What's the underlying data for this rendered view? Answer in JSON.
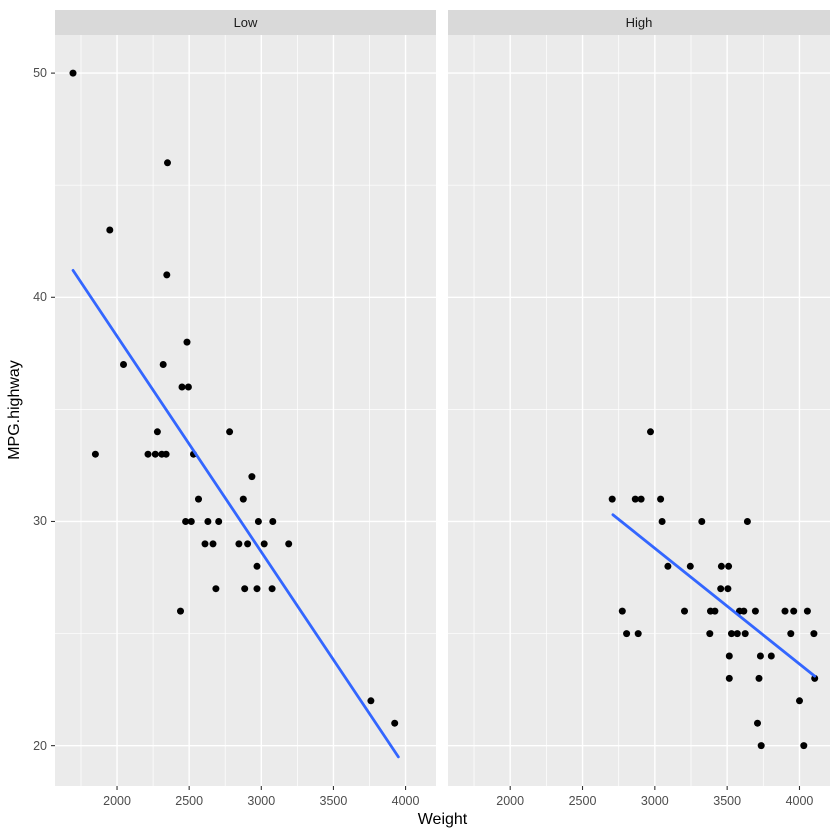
{
  "chart_data": {
    "type": "scatter",
    "title": "",
    "xlabel": "Weight",
    "ylabel": "MPG.highway",
    "legend_position": "none",
    "grid": true,
    "x_range": [
      1570,
      4211
    ],
    "y_range": [
      18.2,
      51.7
    ],
    "x_ticks": [
      "2000",
      "2500",
      "3000",
      "3500",
      "4000"
    ],
    "x_tick_values": [
      2000,
      2500,
      3000,
      3500,
      4000
    ],
    "y_ticks": [
      "20",
      "30",
      "40",
      "50"
    ],
    "y_tick_values": [
      20,
      30,
      40,
      50
    ],
    "x_minor": [
      1750,
      2250,
      2750,
      3250,
      3750
    ],
    "y_minor": [
      25,
      35,
      45
    ],
    "point_color": "#000000",
    "trend_color": "#3366FF",
    "facets": [
      {
        "label": "Low",
        "trend": {
          "x1": 1695,
          "y1": 41.2,
          "x2": 3950,
          "y2": 19.5
        },
        "points": [
          [
            1695,
            50
          ],
          [
            2350,
            46
          ],
          [
            1950,
            43
          ],
          [
            2345,
            41
          ],
          [
            2485,
            38
          ],
          [
            2045,
            37
          ],
          [
            2320,
            37
          ],
          [
            2450,
            36
          ],
          [
            2495,
            36
          ],
          [
            2280,
            34
          ],
          [
            2780,
            34
          ],
          [
            1850,
            33
          ],
          [
            2215,
            33
          ],
          [
            2265,
            33
          ],
          [
            2310,
            33
          ],
          [
            2340,
            33
          ],
          [
            2530,
            33
          ],
          [
            2935,
            32
          ],
          [
            2565,
            31
          ],
          [
            2875,
            31
          ],
          [
            2475,
            30
          ],
          [
            2515,
            30
          ],
          [
            2630,
            30
          ],
          [
            2705,
            30
          ],
          [
            2980,
            30
          ],
          [
            3080,
            30
          ],
          [
            2610,
            29
          ],
          [
            2665,
            29
          ],
          [
            2845,
            29
          ],
          [
            2905,
            29
          ],
          [
            3020,
            29
          ],
          [
            3190,
            29
          ],
          [
            2970,
            28
          ],
          [
            2685,
            27
          ],
          [
            2885,
            27
          ],
          [
            2970,
            27
          ],
          [
            3075,
            27
          ],
          [
            2440,
            26
          ],
          [
            3760,
            22
          ],
          [
            3925,
            21
          ]
        ]
      },
      {
        "label": "High",
        "trend": {
          "x1": 2710,
          "y1": 30.3,
          "x2": 4105,
          "y2": 23.1
        },
        "points": [
          [
            2970,
            34
          ],
          [
            2705,
            31
          ],
          [
            2865,
            31
          ],
          [
            2905,
            31
          ],
          [
            3040,
            31
          ],
          [
            3050,
            30
          ],
          [
            3325,
            30
          ],
          [
            3640,
            30
          ],
          [
            3090,
            28
          ],
          [
            3245,
            28
          ],
          [
            3460,
            28
          ],
          [
            3510,
            28
          ],
          [
            3455,
            27
          ],
          [
            3505,
            27
          ],
          [
            2775,
            26
          ],
          [
            3205,
            26
          ],
          [
            3385,
            26
          ],
          [
            3415,
            26
          ],
          [
            3585,
            26
          ],
          [
            3615,
            26
          ],
          [
            3695,
            26
          ],
          [
            3900,
            26
          ],
          [
            3960,
            26
          ],
          [
            4055,
            26
          ],
          [
            2805,
            25
          ],
          [
            2885,
            25
          ],
          [
            3380,
            25
          ],
          [
            3530,
            25
          ],
          [
            3570,
            25
          ],
          [
            3625,
            25
          ],
          [
            3940,
            25
          ],
          [
            4100,
            25
          ],
          [
            3515,
            24
          ],
          [
            3730,
            24
          ],
          [
            3805,
            24
          ],
          [
            3515,
            23
          ],
          [
            3720,
            23
          ],
          [
            4105,
            23
          ],
          [
            4000,
            22
          ],
          [
            3710,
            21
          ],
          [
            3735,
            20
          ],
          [
            4030,
            20
          ]
        ]
      }
    ]
  },
  "theme": {
    "panel_bg": "#EBEBEB",
    "strip_bg": "#D9D9D9",
    "grid_color": "#FFFFFF",
    "axis_text_color": "#4D4D4D",
    "tick_color": "#333333",
    "strip_text_color": "#1A1A1A",
    "title_color": "#000000"
  }
}
